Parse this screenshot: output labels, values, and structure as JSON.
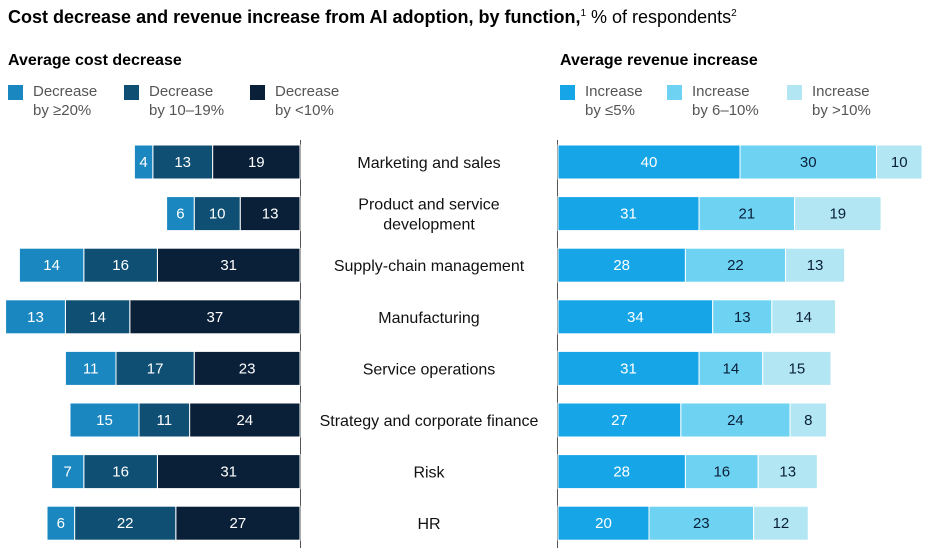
{
  "title": {
    "bold": "Cost decrease and revenue increase from AI adoption, by function,",
    "sup1": "1",
    "rest": " % of respondents",
    "sup2": "2"
  },
  "colors": {
    "cost": [
      "#1a87c0",
      "#0f4f73",
      "#0a1f38"
    ],
    "revenue": [
      "#16a6e8",
      "#6ed3f2",
      "#b2e6f3"
    ],
    "axis": "#555555"
  },
  "chart_data": [
    {
      "type": "bar",
      "orientation": "horizontal",
      "stacked": true,
      "direction": "right-to-left",
      "title": "Average cost decrease",
      "categories": [
        "Marketing and sales",
        "Product and service development",
        "Supply-chain management",
        "Manufacturing",
        "Service operations",
        "Strategy and corporate finance",
        "Risk",
        "HR"
      ],
      "series": [
        {
          "name": "Decrease by ≥20%",
          "legend_lines": [
            "Decrease",
            "by ≥20%"
          ],
          "values": [
            4,
            6,
            14,
            13,
            11,
            15,
            7,
            6
          ]
        },
        {
          "name": "Decrease by 10–19%",
          "legend_lines": [
            "Decrease",
            "by 10–19%"
          ],
          "values": [
            13,
            10,
            16,
            14,
            17,
            11,
            16,
            22
          ]
        },
        {
          "name": "Decrease by <10%",
          "legend_lines": [
            "Decrease",
            "by <10%"
          ],
          "values": [
            19,
            13,
            31,
            37,
            23,
            24,
            31,
            27
          ]
        }
      ]
    },
    {
      "type": "bar",
      "orientation": "horizontal",
      "stacked": true,
      "direction": "left-to-right",
      "title": "Average revenue increase",
      "categories": [
        "Marketing and sales",
        "Product and service development",
        "Supply-chain management",
        "Manufacturing",
        "Service operations",
        "Strategy and corporate finance",
        "Risk",
        "HR"
      ],
      "series": [
        {
          "name": "Increase by ≤5%",
          "legend_lines": [
            "Increase",
            "by ≤5%"
          ],
          "values": [
            40,
            31,
            28,
            34,
            31,
            27,
            28,
            20
          ]
        },
        {
          "name": "Increase by 6–10%",
          "legend_lines": [
            "Increase",
            "by 6–10%"
          ],
          "values": [
            30,
            21,
            22,
            13,
            14,
            24,
            16,
            23
          ]
        },
        {
          "name": "Increase by >10%",
          "legend_lines": [
            "Increase",
            "by >10%"
          ],
          "values": [
            10,
            19,
            13,
            14,
            15,
            8,
            13,
            12
          ]
        }
      ]
    }
  ]
}
